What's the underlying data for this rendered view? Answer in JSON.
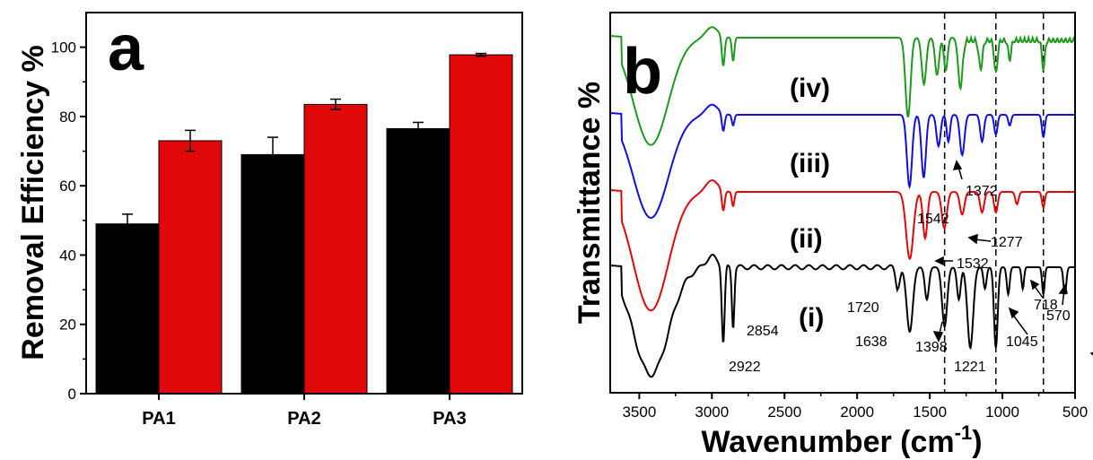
{
  "chart_data": [
    {
      "type": "bar",
      "panel_label": "a",
      "ylabel": "Removal Efficiency %",
      "xlabel": "",
      "categories": [
        "PA1",
        "PA2",
        "PA3"
      ],
      "ylim": [
        0,
        110
      ],
      "yticks": [
        0,
        20,
        40,
        60,
        80,
        100
      ],
      "series": [
        {
          "color": "#000000",
          "values": [
            49,
            69,
            76.5
          ],
          "errors": [
            2.8,
            5,
            1.8
          ]
        },
        {
          "color": "#e00808",
          "values": [
            73,
            83.5,
            97.8
          ],
          "errors": [
            3,
            1.5,
            0.4
          ]
        }
      ]
    },
    {
      "type": "line",
      "panel_label": "b",
      "xlabel": "Wavenumber (cm",
      "xlabel_sup": "-1",
      "xlabel_end": ")",
      "ylabel": "Transmittance %",
      "xlim": [
        3700,
        500
      ],
      "xticks": [
        3500,
        3000,
        2500,
        2000,
        1500,
        1000,
        500
      ],
      "dashed_lines": [
        1398,
        1045,
        718
      ],
      "series": [
        {
          "name": "(i)",
          "color": "#000000"
        },
        {
          "name": "(ii)",
          "color": "#e00808"
        },
        {
          "name": "(iii)",
          "color": "#1010e0"
        },
        {
          "name": "(iv)",
          "color": "#1e9a1e"
        }
      ],
      "annotations": [
        {
          "text": "2922",
          "x": 2922
        },
        {
          "text": "2854",
          "x": 2854
        },
        {
          "text": "1720",
          "x": 1720
        },
        {
          "text": "1638",
          "x": 1638
        },
        {
          "text": "1398",
          "x": 1398
        },
        {
          "text": "1221",
          "x": 1221
        },
        {
          "text": "1045",
          "x": 1045
        },
        {
          "text": "718",
          "x": 718
        },
        {
          "text": "570",
          "x": 570
        },
        {
          "text": "1532",
          "x": 1532
        },
        {
          "text": "1277",
          "x": 1277
        },
        {
          "text": "1542",
          "x": 1542
        },
        {
          "text": "1372",
          "x": 1372
        }
      ]
    }
  ]
}
